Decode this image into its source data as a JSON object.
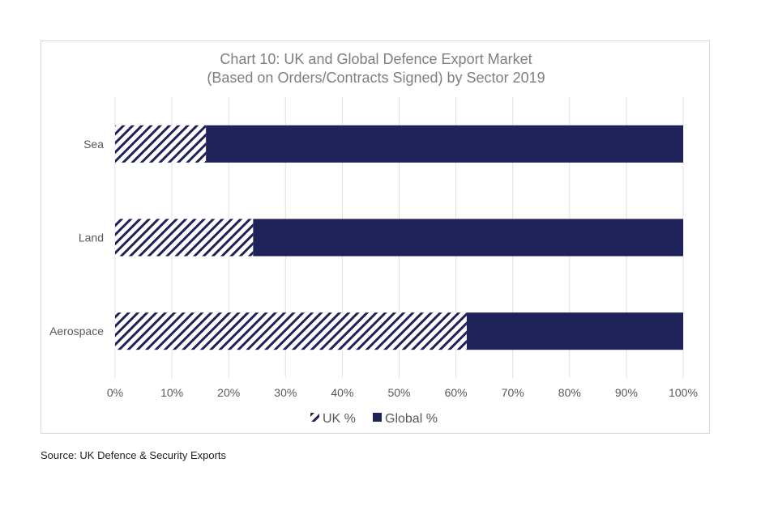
{
  "chart_data": {
    "type": "bar",
    "orientation": "horizontal",
    "stacked": "percent",
    "title": [
      "Chart 10: UK and Global Defence Export Market",
      "(Based on Orders/Contracts Signed) by Sector 2019"
    ],
    "categories": [
      "Sea",
      "Land",
      "Aerospace"
    ],
    "series": [
      {
        "name": "UK %",
        "values": [
          16.0,
          24.3,
          61.9
        ],
        "color": "#1f2159",
        "pattern": "diagonal-hatch"
      },
      {
        "name": "Global %",
        "values": [
          84.0,
          75.7,
          38.1
        ],
        "color": "#1f2159",
        "pattern": "solid"
      }
    ],
    "xticks": [
      "0%",
      "10%",
      "20%",
      "30%",
      "40%",
      "50%",
      "60%",
      "70%",
      "80%",
      "90%",
      "100%"
    ],
    "xlim": [
      0,
      100
    ],
    "grid": true,
    "legend": "bottom"
  },
  "source": "Source: UK Defence & Security Exports"
}
